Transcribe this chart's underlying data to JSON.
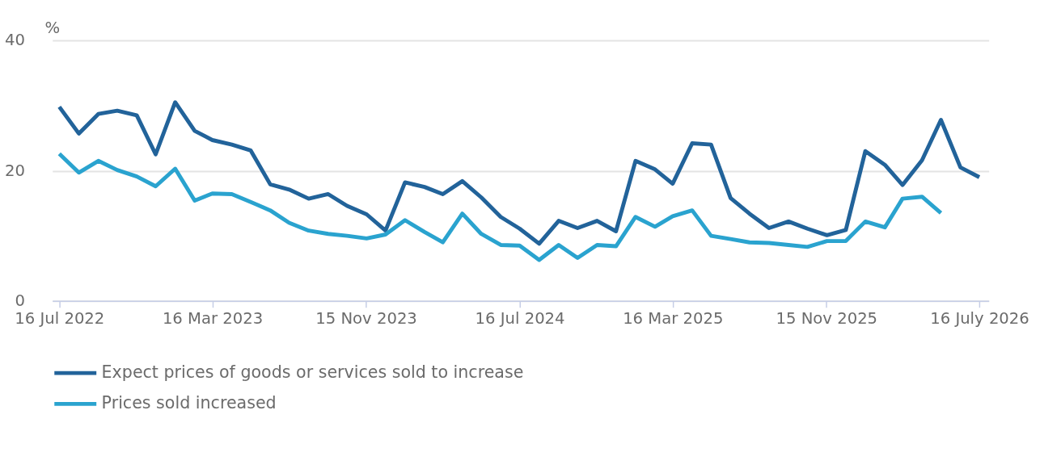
{
  "chart_data": {
    "type": "line",
    "ylabel": "%",
    "x": [
      "2022-07-16",
      "2022-08-16",
      "2022-09-16",
      "2022-10-16",
      "2022-11-16",
      "2022-12-16",
      "2023-01-16",
      "2023-02-16",
      "2023-03-16",
      "2023-04-16",
      "2023-05-16",
      "2023-06-16",
      "2023-07-16",
      "2023-08-16",
      "2023-09-16",
      "2023-10-16",
      "2023-11-16",
      "2023-12-16",
      "2024-01-16",
      "2024-02-16",
      "2024-03-16",
      "2024-04-16",
      "2024-05-16",
      "2024-06-16",
      "2024-07-16",
      "2024-08-16",
      "2024-09-16",
      "2024-10-16",
      "2024-11-16",
      "2024-12-16",
      "2025-01-16",
      "2025-02-16",
      "2025-03-16",
      "2025-04-16",
      "2025-05-16",
      "2025-06-16",
      "2025-07-16",
      "2025-08-16",
      "2025-09-16",
      "2025-10-16",
      "2025-11-16",
      "2025-12-16",
      "2026-01-16",
      "2026-02-16",
      "2026-03-16",
      "2026-04-16",
      "2026-05-16",
      "2026-06-16",
      "2026-07-16"
    ],
    "series": [
      {
        "name": "Expect prices of goods or services sold to increase",
        "color": "#22639a",
        "values": [
          29.8,
          25.7,
          28.7,
          29.2,
          28.5,
          22.5,
          30.5,
          26.1,
          24.7,
          24.0,
          23.1,
          17.9,
          17.1,
          15.7,
          16.4,
          14.6,
          13.3,
          10.8,
          18.2,
          17.5,
          16.4,
          18.4,
          15.9,
          12.9,
          11.1,
          8.8,
          12.3,
          11.2,
          12.3,
          10.7,
          21.5,
          20.2,
          18.0,
          24.2,
          24.0,
          15.8,
          13.4,
          11.2,
          12.2,
          11.1,
          10.1,
          10.9,
          23.0,
          20.9,
          17.8,
          21.6,
          27.8,
          20.5,
          19.0
        ]
      },
      {
        "name": "Prices sold increased",
        "color": "#2aa3cf",
        "values": [
          22.6,
          19.7,
          21.5,
          20.1,
          19.1,
          17.6,
          20.3,
          15.4,
          16.5,
          16.4,
          15.2,
          13.9,
          12.0,
          10.8,
          10.3,
          10.0,
          9.6,
          10.2,
          12.4,
          10.6,
          9.0,
          13.4,
          10.3,
          8.6,
          8.5,
          6.3,
          8.6,
          6.6,
          8.6,
          8.4,
          12.9,
          11.4,
          13.0,
          13.9,
          10.0,
          9.5,
          9.0,
          8.9,
          8.6,
          8.3,
          9.2,
          9.2,
          12.2,
          11.3,
          15.7,
          16.0,
          13.5,
          null,
          null
        ]
      }
    ],
    "xlim": [
      "2022-07-05",
      "2026-07-31"
    ],
    "xticks": [
      {
        "value": "2022-07-16",
        "label": "16 Jul 2022"
      },
      {
        "value": "2023-03-16",
        "label": "16 Mar 2023"
      },
      {
        "value": "2023-11-15",
        "label": "15 Nov 2023"
      },
      {
        "value": "2024-07-16",
        "label": "16 Jul 2024"
      },
      {
        "value": "2025-03-16",
        "label": "16 Mar 2025"
      },
      {
        "value": "2025-11-15",
        "label": "15 Nov 2025"
      },
      {
        "value": "2026-07-16",
        "label": "16 July 2026"
      }
    ],
    "ylim": [
      0,
      40
    ],
    "yticks": [
      0,
      20,
      40
    ],
    "grid": "y",
    "legend": "bottom",
    "line_style": "solid",
    "marker": "none"
  }
}
